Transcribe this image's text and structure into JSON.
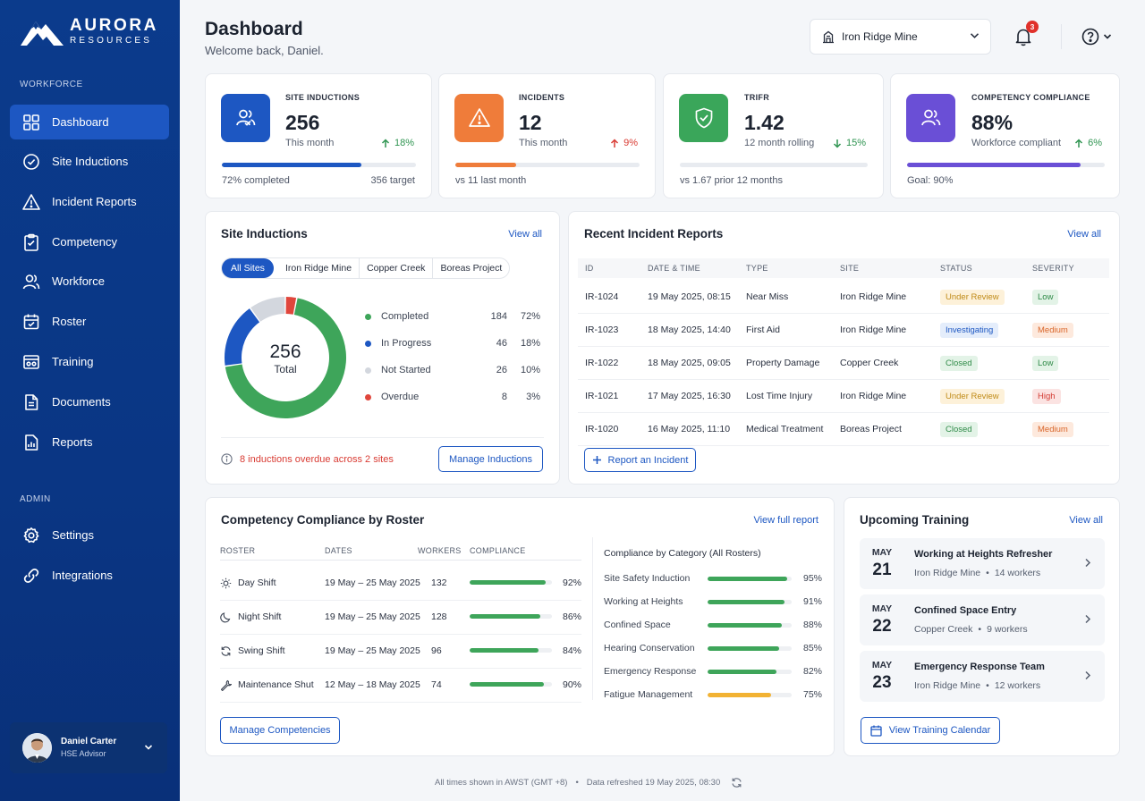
{
  "brand": {
    "name": "AURORA",
    "sub": "RESOURCES"
  },
  "nav": {
    "section_workforce": "WORKFORCE",
    "items": [
      {
        "label": "Dashboard",
        "icon": "grid-icon"
      },
      {
        "label": "Site Inductions",
        "icon": "check-circle-icon"
      },
      {
        "label": "Incident Reports",
        "icon": "warning-icon"
      },
      {
        "label": "Competency",
        "icon": "clipboard-icon"
      },
      {
        "label": "Workforce",
        "icon": "users-icon"
      },
      {
        "label": "Roster",
        "icon": "calendar-icon"
      },
      {
        "label": "Training",
        "icon": "training-icon"
      },
      {
        "label": "Documents",
        "icon": "document-icon"
      },
      {
        "label": "Reports",
        "icon": "report-icon"
      }
    ],
    "section_admin": "ADMIN",
    "admin_items": [
      {
        "label": "Settings",
        "icon": "gear-icon"
      },
      {
        "label": "Integrations",
        "icon": "link-icon"
      }
    ]
  },
  "user": {
    "name": "Daniel Carter",
    "role": "HSE Advisor"
  },
  "header": {
    "title": "Dashboard",
    "welcome": "Welcome back, Daniel.",
    "site": "Iron Ridge Mine",
    "notifications": "3"
  },
  "kpis": [
    {
      "label": "SITE INDUCTIONS",
      "value": "256",
      "sub": "This month",
      "trend": "18%",
      "progress": 0.72,
      "foot_left": "72% completed",
      "foot_right": "356 target",
      "color": "#1d57c2"
    },
    {
      "label": "INCIDENTS",
      "value": "12",
      "sub": "This month",
      "trend": "9%",
      "progress": 0.33,
      "foot_left": "vs 11 last month",
      "color": "#ef7c3a"
    },
    {
      "label": "TRIFR",
      "value": "1.42",
      "sub": "12 month rolling",
      "trend": "15%",
      "foot_left": "vs 1.67 prior 12 months",
      "color": "#3aa65a"
    },
    {
      "label": "COMPETENCY COMPLIANCE",
      "value": "88%",
      "sub": "Workforce compliant",
      "trend": "6%",
      "progress": 0.88,
      "foot_left": "Goal: 90%",
      "color": "#6a4fd6"
    }
  ],
  "site_inductions": {
    "title": "Site Inductions",
    "view_all": "View all",
    "tabs": [
      "All Sites",
      "Iron Ridge Mine",
      "Copper Creek",
      "Boreas Project"
    ],
    "total": "256",
    "total_label": "Total",
    "legend": [
      {
        "label": "Completed",
        "count": "184",
        "pct": "72%",
        "value": 184,
        "color": "#3ea55a"
      },
      {
        "label": "In Progress",
        "count": "46",
        "pct": "18%",
        "value": 46,
        "color": "#1d57c2"
      },
      {
        "label": "Not Started",
        "count": "26",
        "pct": "10%",
        "value": 26,
        "color": "#d3d7de"
      },
      {
        "label": "Overdue",
        "count": "8",
        "pct": "3%",
        "value": 8,
        "color": "#e0463c"
      }
    ],
    "warning": "8 inductions overdue across 2 sites",
    "manage": "Manage Inductions"
  },
  "incidents": {
    "title": "Recent Incident Reports",
    "view_all": "View all",
    "columns": [
      "ID",
      "DATE & TIME",
      "TYPE",
      "SITE",
      "STATUS",
      "SEVERITY"
    ],
    "rows": [
      {
        "id": "IR-1024",
        "date": "19 May 2025, 08:15",
        "type": "Near Miss",
        "site": "Iron Ridge Mine",
        "status": "Under Review",
        "severity": "Low"
      },
      {
        "id": "IR-1023",
        "date": "18 May 2025, 14:40",
        "type": "First Aid",
        "site": "Iron Ridge Mine",
        "status": "Investigating",
        "severity": "Medium"
      },
      {
        "id": "IR-1022",
        "date": "18 May 2025, 09:05",
        "type": "Property Damage",
        "site": "Copper Creek",
        "status": "Closed",
        "severity": "Low"
      },
      {
        "id": "IR-1021",
        "date": "17 May 2025, 16:30",
        "type": "Lost Time Injury",
        "site": "Iron Ridge Mine",
        "status": "Under Review",
        "severity": "High"
      },
      {
        "id": "IR-1020",
        "date": "16 May 2025, 11:10",
        "type": "Medical Treatment",
        "site": "Boreas Project",
        "status": "Closed",
        "severity": "Medium"
      }
    ],
    "report_btn": "Report an Incident"
  },
  "competency": {
    "title": "Competency Compliance by Roster",
    "view_full": "View full report",
    "columns": [
      "ROSTER",
      "DATES",
      "WORKERS",
      "COMPLIANCE"
    ],
    "rows": [
      {
        "name": "Day Shift",
        "dates": "19 May – 25 May 2025",
        "workers": "132",
        "compliance": "92%",
        "value": 0.92,
        "icon": "sun-icon"
      },
      {
        "name": "Night Shift",
        "dates": "19 May – 25 May 2025",
        "workers": "128",
        "compliance": "86%",
        "value": 0.86,
        "icon": "moon-icon"
      },
      {
        "name": "Swing Shift",
        "dates": "19 May – 25 May 2025",
        "workers": "96",
        "compliance": "84%",
        "value": 0.84,
        "icon": "cycle-icon"
      },
      {
        "name": "Maintenance Shut",
        "dates": "12 May – 18 May 2025",
        "workers": "74",
        "compliance": "90%",
        "value": 0.9,
        "icon": "wrench-icon"
      }
    ],
    "category_title": "Compliance by Category (All Rosters)",
    "categories": [
      {
        "name": "Site Safety Induction",
        "pct": "95%",
        "value": 0.95,
        "color": "#3ea55a"
      },
      {
        "name": "Working at Heights",
        "pct": "91%",
        "value": 0.91,
        "color": "#3ea55a"
      },
      {
        "name": "Confined Space",
        "pct": "88%",
        "value": 0.88,
        "color": "#3ea55a"
      },
      {
        "name": "Hearing Conservation",
        "pct": "85%",
        "value": 0.85,
        "color": "#3ea55a"
      },
      {
        "name": "Emergency Response",
        "pct": "82%",
        "value": 0.82,
        "color": "#3ea55a"
      },
      {
        "name": "Fatigue Management",
        "pct": "75%",
        "value": 0.75,
        "color": "#f2b233"
      }
    ],
    "manage": "Manage Competencies"
  },
  "training": {
    "title": "Upcoming Training",
    "view_all": "View all",
    "items": [
      {
        "month": "MAY",
        "day": "21",
        "name": "Working at Heights Refresher",
        "site": "Iron Ridge Mine",
        "workers": "14 workers"
      },
      {
        "month": "MAY",
        "day": "22",
        "name": "Confined Space Entry",
        "site": "Copper Creek",
        "workers": "9 workers"
      },
      {
        "month": "MAY",
        "day": "23",
        "name": "Emergency Response Team",
        "site": "Iron Ridge Mine",
        "workers": "12 workers"
      }
    ],
    "calendar_btn": "View Training Calendar"
  },
  "footer": {
    "timezone": "All times shown in AWST (GMT +8)",
    "refreshed": "Data refreshed 19 May 2025, 08:30"
  }
}
